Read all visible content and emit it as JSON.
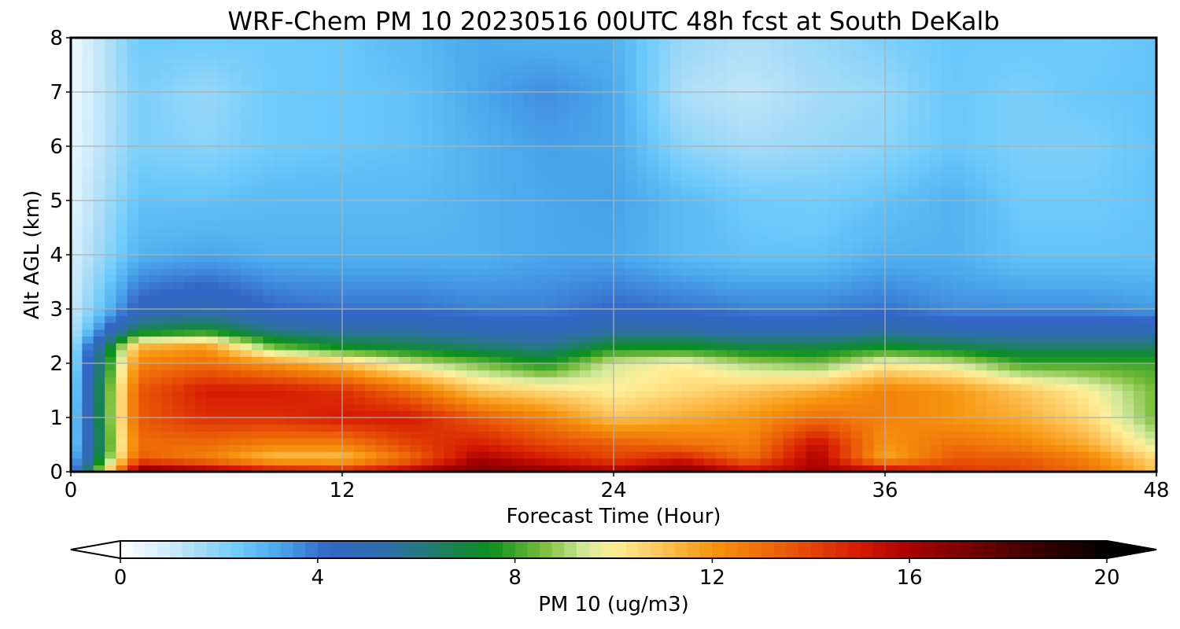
{
  "chart_data": {
    "type": "heatmap",
    "title": "WRF-Chem PM 10  20230516 00UTC 48h fcst at South DeKalb",
    "xlabel": "Forecast Time (Hour)",
    "ylabel": "Alt AGL (km)",
    "xlim": [
      0,
      48
    ],
    "ylim": [
      0,
      8
    ],
    "x_ticks": [
      0,
      12,
      24,
      36,
      48
    ],
    "y_ticks": [
      0,
      1,
      2,
      3,
      4,
      5,
      6,
      7,
      8
    ],
    "grid": true,
    "x_hours": [
      0,
      3,
      6,
      9,
      12,
      15,
      18,
      21,
      24,
      27,
      30,
      33,
      36,
      39,
      42,
      45,
      48
    ],
    "y_km": [
      0,
      0.25,
      0.5,
      1,
      1.5,
      2,
      2.3,
      2.6,
      3,
      4,
      5,
      6,
      7,
      8
    ],
    "z_ugm3": [
      [
        3.0,
        17.0,
        16.5,
        15.5,
        15.0,
        16.0,
        17.0,
        16.5,
        16.0,
        17.0,
        15.5,
        16.0,
        16.0,
        14.5,
        14.0,
        13.0,
        11.0
      ],
      [
        2.5,
        13.5,
        12.5,
        11.0,
        11.0,
        13.0,
        16.0,
        15.0,
        14.0,
        15.0,
        13.0,
        16.0,
        11.5,
        13.5,
        13.5,
        12.5,
        10.5
      ],
      [
        2.0,
        13.0,
        13.0,
        12.5,
        12.5,
        14.0,
        15.0,
        14.0,
        13.5,
        13.0,
        12.5,
        15.5,
        12.0,
        13.0,
        12.5,
        11.5,
        9.5
      ],
      [
        2.0,
        13.5,
        14.5,
        14.5,
        15.0,
        15.0,
        13.5,
        12.5,
        11.0,
        11.5,
        12.0,
        13.0,
        12.5,
        12.0,
        11.5,
        10.5,
        8.5
      ],
      [
        1.8,
        13.5,
        15.0,
        15.0,
        14.5,
        13.0,
        11.0,
        10.5,
        10.0,
        10.5,
        11.0,
        11.5,
        12.5,
        12.0,
        11.0,
        10.0,
        8.5
      ],
      [
        1.6,
        12.5,
        13.0,
        12.0,
        11.0,
        9.5,
        8.5,
        7.5,
        9.5,
        10.0,
        9.0,
        8.5,
        10.0,
        9.5,
        8.0,
        8.0,
        8.0
      ],
      [
        1.4,
        11.5,
        12.0,
        8.5,
        7.5,
        7.0,
        6.5,
        6.0,
        7.5,
        7.5,
        7.0,
        7.0,
        7.5,
        7.0,
        6.5,
        6.5,
        6.5
      ],
      [
        1.2,
        7.0,
        7.5,
        6.0,
        5.5,
        5.5,
        5.0,
        4.8,
        5.5,
        5.5,
        5.0,
        5.0,
        5.5,
        5.0,
        5.0,
        5.0,
        5.0
      ],
      [
        1.0,
        4.5,
        5.0,
        4.2,
        4.0,
        4.0,
        3.8,
        3.8,
        4.2,
        4.0,
        3.8,
        3.8,
        4.0,
        3.6,
        3.6,
        3.6,
        3.4
      ],
      [
        0.8,
        3.0,
        3.2,
        3.0,
        3.0,
        3.0,
        3.0,
        3.2,
        3.2,
        2.8,
        2.6,
        2.6,
        3.0,
        3.0,
        2.6,
        2.6,
        2.6
      ],
      [
        0.6,
        2.6,
        2.6,
        2.8,
        2.8,
        2.8,
        3.0,
        3.2,
        3.3,
        2.8,
        2.4,
        2.3,
        2.6,
        3.0,
        2.4,
        2.4,
        2.6
      ],
      [
        0.5,
        2.2,
        2.0,
        2.4,
        2.5,
        2.6,
        3.0,
        3.3,
        3.2,
        2.0,
        1.6,
        1.8,
        2.0,
        2.5,
        2.2,
        2.2,
        2.6
      ],
      [
        0.4,
        2.2,
        1.8,
        2.4,
        2.5,
        2.6,
        3.2,
        3.6,
        3.2,
        1.5,
        1.2,
        1.6,
        1.8,
        2.5,
        2.2,
        2.5,
        2.6
      ],
      [
        0.3,
        2.4,
        2.4,
        2.4,
        2.5,
        2.8,
        3.2,
        3.0,
        3.0,
        1.8,
        1.5,
        1.8,
        2.2,
        2.5,
        2.5,
        2.4,
        2.6
      ]
    ],
    "colorbar": {
      "label": "PM 10  (ug/m3)",
      "range": [
        0,
        20
      ],
      "ticks": [
        0,
        4,
        8,
        12,
        16,
        20
      ],
      "extend": "both",
      "colors": [
        "#ffffff",
        "#d9f0fb",
        "#a7dcf7",
        "#6ecbfb",
        "#4aa8ec",
        "#3366c8",
        "#2f6fa8",
        "#0a8f1e",
        "#7cbf3c",
        "#cfe89a",
        "#fff099",
        "#fdc357",
        "#f7960f",
        "#ea5a06",
        "#d51a02",
        "#a80000",
        "#6a0000",
        "#2a0000",
        "#000000"
      ],
      "stops": [
        0,
        0.8,
        1.6,
        2.4,
        3.2,
        4.2,
        5.5,
        7.5,
        8.6,
        9.4,
        10.0,
        11.0,
        12.0,
        13.5,
        15.0,
        16.0,
        17.5,
        19.0,
        20.0
      ]
    }
  }
}
